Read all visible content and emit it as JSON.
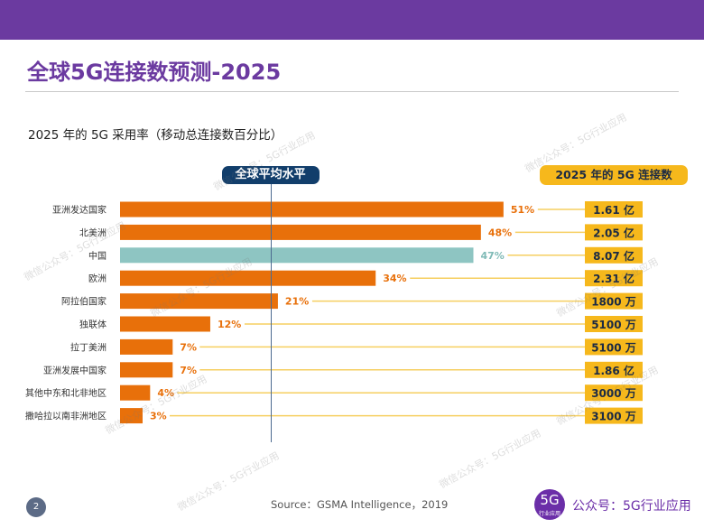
{
  "header": {
    "title": "全球5G连接数预测-2025"
  },
  "chart_data": {
    "type": "bar",
    "title": "2025 年的 5G 采用率（移动总连接数百分比）",
    "categories": [
      "亚洲发达国家",
      "北美洲",
      "中国",
      "欧洲",
      "阿拉伯国家",
      "独联体",
      "拉丁美洲",
      "亚洲发展中国家",
      "其他中东和北非地区",
      "撒哈拉以南非洲地区"
    ],
    "values": [
      51,
      48,
      47,
      34,
      21,
      12,
      7,
      7,
      4,
      3
    ],
    "value_labels": [
      "51%",
      "48%",
      "47%",
      "34%",
      "21%",
      "12%",
      "7%",
      "7%",
      "4%",
      "3%"
    ],
    "highlight_index": 2,
    "xlim": [
      0,
      100
    ],
    "global_average": 20,
    "global_average_label": "全球平均水平",
    "connections_header": "2025 年的 5G 连接数",
    "connections": [
      "1.61 亿",
      "2.05 亿",
      "8.07 亿",
      "2.31 亿",
      "1800 万",
      "5100 万",
      "5100 万",
      "1.86 亿",
      "3000 万",
      "3100 万"
    ],
    "colors": {
      "bar": "#e8700a",
      "highlight": "#8ec5c2",
      "label": "#e8700a",
      "highlight_label": "#7fbab6",
      "leader": "#f6cf60",
      "box": "#f6b81c"
    }
  },
  "footer": {
    "page": "2",
    "source": "Source：GSMA Intelligence，2019",
    "logo_big": "5G",
    "logo_small": "行业应用",
    "brand": "公众号：5G行业应用"
  },
  "watermark": "微信公众号：5G行业应用"
}
